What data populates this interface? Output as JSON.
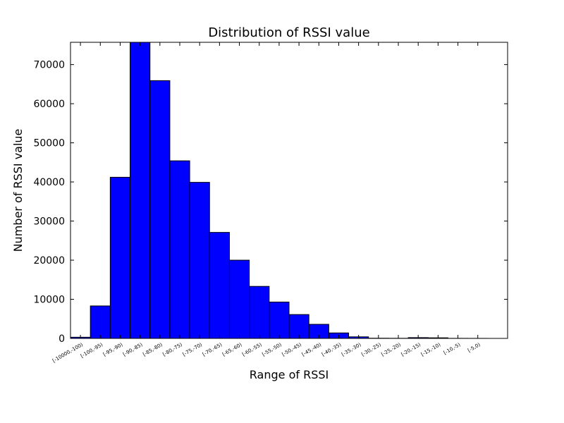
{
  "chart_data": {
    "type": "bar",
    "title": "Distribution of RSSI value",
    "xlabel": "Range of RSSI",
    "ylabel": "Number of RSSI value",
    "categories": [
      "[-10000,-100)",
      "[-100,-95)",
      "[-95,-90)",
      "[-90,-85)",
      "[-85,-80)",
      "[-80,-75)",
      "[-75,-70)",
      "[-70,-65)",
      "[-65,-60)",
      "[-60,-55)",
      "[-55,-50)",
      "[-50,-45)",
      "[-45,-40)",
      "[-40,-35)",
      "[-35,-30)",
      "[-30,-25)",
      "[-25,-20)",
      "[-20,-15)",
      "[-15,-10)",
      "[-10,-5)",
      "[-5,0)"
    ],
    "values": [
      300,
      8300,
      41200,
      75700,
      65900,
      45400,
      39900,
      27100,
      20000,
      13300,
      9300,
      6100,
      3600,
      1400,
      400,
      50,
      30,
      200,
      150,
      20,
      10
    ],
    "ylim": [
      0,
      75700
    ],
    "yticks": [
      0,
      10000,
      20000,
      30000,
      40000,
      50000,
      60000,
      70000
    ],
    "bar_color": "#0000ff",
    "grid": false
  }
}
